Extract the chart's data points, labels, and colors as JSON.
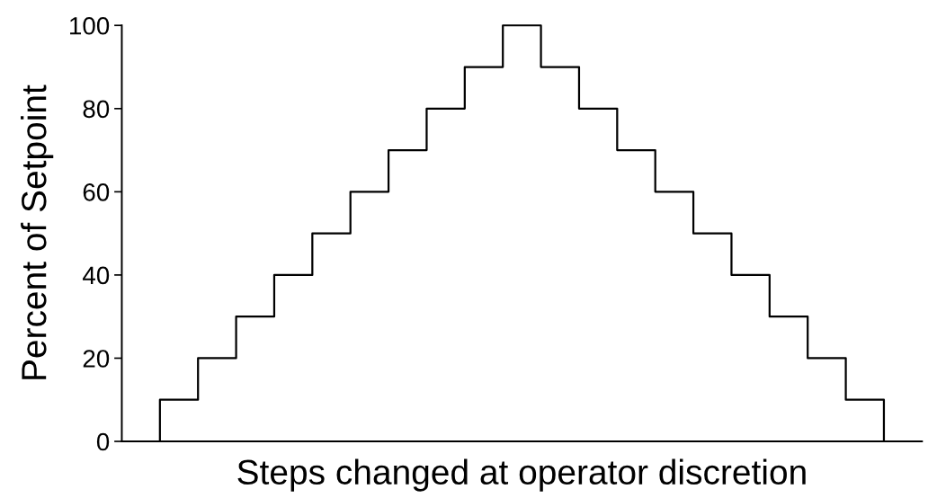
{
  "chart_data": {
    "type": "step",
    "categories": [
      null,
      null,
      null,
      null,
      null,
      null,
      null,
      null,
      null,
      null,
      null,
      null,
      null,
      null,
      null,
      null,
      null,
      null,
      null,
      null,
      null
    ],
    "values": [
      0,
      10,
      20,
      30,
      40,
      50,
      60,
      70,
      80,
      90,
      100,
      90,
      80,
      70,
      60,
      50,
      40,
      30,
      20,
      10,
      0
    ],
    "color": "#000000",
    "xlabel": "Steps changed at operator discretion",
    "ylabel": "Percent of Setpoint",
    "ylim": [
      0,
      100
    ],
    "yticks": [
      0,
      20,
      40,
      60,
      80,
      100
    ],
    "grid": false,
    "legend": false,
    "tick_labels": "y"
  }
}
